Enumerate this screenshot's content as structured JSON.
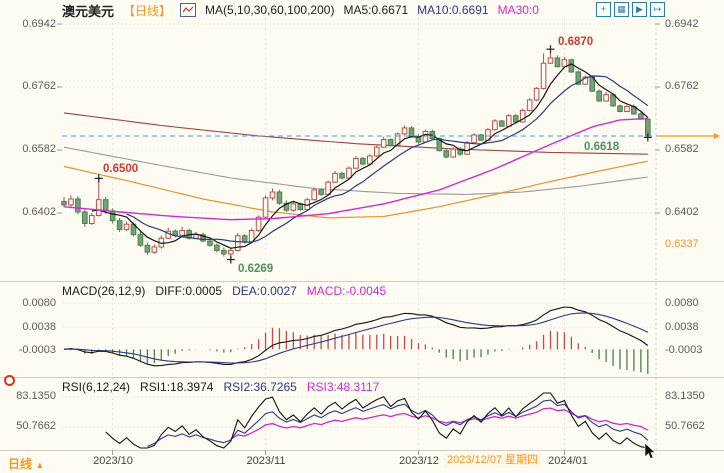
{
  "header": {
    "symbol": "澳元美元",
    "period_tag": "【日线】",
    "ma_title": "MA(5,10,30,60,100,200)",
    "ma5": "MA5:0.6671",
    "ma10": "MA10:0.6691",
    "ma30": "MA30:0",
    "icons": [
      {
        "name": "crosshair-move",
        "glyph": "+"
      },
      {
        "name": "axes-scale",
        "glyph": "▦"
      },
      {
        "name": "play-chart",
        "glyph": "▶"
      },
      {
        "name": "export-chart",
        "glyph": "↦"
      }
    ]
  },
  "main_axis": {
    "left": [
      "0.6942",
      "0.6762",
      "0.6582",
      "0.6402"
    ],
    "right": [
      "0.6942",
      "0.6762",
      "0.6582",
      "0.6402"
    ],
    "right_extra": "0.6337"
  },
  "annotations": {
    "period_high": "0.6870",
    "local_high": "0.6500",
    "period_low": "0.6269",
    "recent_low": "0.6618"
  },
  "macd": {
    "title": "MACD(26,12,9)",
    "diff": "DIFF:0.0005",
    "dea": "DEA:0.0027",
    "macd": "MACD:-0.0045",
    "ticks": [
      "0.0080",
      "0.0038",
      "-0.0003"
    ]
  },
  "rsi": {
    "title": "RSI(6,12,24)",
    "rsi1": "RSI1:18.3974",
    "rsi2": "RSI2:36.7265",
    "rsi3": "RSI3:48.3117",
    "ticks": [
      "83.1350",
      "50.7662"
    ]
  },
  "time_axis": {
    "period": "日线",
    "period_arrow": "▲",
    "months": [
      "2023/10",
      "2023/11",
      "2023/12",
      "2024/01"
    ],
    "crosshair_date": "2023/12/07 星期四"
  },
  "colors": {
    "up": "#b5504a",
    "upFill": "#fdfbf2",
    "down": "#4e7f4e",
    "downFill": "#74a276",
    "ma5": "#141414",
    "ma10": "#2a3a86",
    "ma30": "#cf2ecf",
    "ma60": "#dd9833",
    "ma100": "#9a9a9a",
    "ma200": "#9c4343",
    "lastPriceDash": "#3fa0d8",
    "orange": "#ef9a28",
    "histPos": "#bf4d4d",
    "histNeg": "#4d8050",
    "diff": "#141414",
    "dea": "#2a3a86",
    "rsi1": "#141414",
    "rsi2": "#2a3a86",
    "rsi3": "#c92cc9",
    "grid": "#e4e1d4",
    "separator": "#cfcec4",
    "marker": "#222222"
  },
  "chart_data": {
    "type": "candlestick",
    "title": "澳元美元 日线 (AUD/USD daily) with MA(5,10,30,60,100,200), MACD(26,12,9), RSI(6,12,24)",
    "y_ticks": [
      0.6942,
      0.6762,
      0.6582,
      0.6402
    ],
    "last_price": 0.6622,
    "month_start_indices": [
      7,
      29,
      51,
      72
    ],
    "marks": {
      "period_high": {
        "index": 70,
        "price": 0.687
      },
      "local_high": {
        "index": 5,
        "price": 0.6501
      },
      "period_low": {
        "index": 24,
        "price": 0.6269
      },
      "recent_low": {
        "index": 84,
        "price": 0.6618
      }
    },
    "candles": {
      "open": [
        0.6435,
        0.6425,
        0.6442,
        0.6405,
        0.6372,
        0.6395,
        0.644,
        0.6408,
        0.638,
        0.6355,
        0.637,
        0.634,
        0.631,
        0.629,
        0.6305,
        0.633,
        0.635,
        0.6338,
        0.6352,
        0.633,
        0.634,
        0.6322,
        0.631,
        0.6295,
        0.6285,
        0.6295,
        0.6337,
        0.632,
        0.6352,
        0.639,
        0.6445,
        0.6462,
        0.643,
        0.641,
        0.6428,
        0.6412,
        0.644,
        0.6468,
        0.6455,
        0.649,
        0.6515,
        0.6502,
        0.653,
        0.6558,
        0.6542,
        0.6565,
        0.659,
        0.6612,
        0.6595,
        0.6628,
        0.6645,
        0.662,
        0.6605,
        0.6635,
        0.6615,
        0.658,
        0.6562,
        0.6585,
        0.657,
        0.6603,
        0.6625,
        0.661,
        0.664,
        0.6665,
        0.665,
        0.668,
        0.6662,
        0.6695,
        0.6725,
        0.6758,
        0.683,
        0.6845,
        0.682,
        0.684,
        0.6805,
        0.677,
        0.679,
        0.675,
        0.6722,
        0.674,
        0.6708,
        0.6692,
        0.6706,
        0.6685,
        0.667
      ],
      "high": [
        0.6448,
        0.6452,
        0.645,
        0.6412,
        0.6402,
        0.6501,
        0.6448,
        0.6415,
        0.6388,
        0.6378,
        0.6375,
        0.6348,
        0.6318,
        0.6312,
        0.6338,
        0.636,
        0.6355,
        0.6362,
        0.6358,
        0.6348,
        0.6346,
        0.633,
        0.6315,
        0.6303,
        0.6302,
        0.6345,
        0.6342,
        0.6358,
        0.6395,
        0.6452,
        0.6472,
        0.6468,
        0.6438,
        0.6435,
        0.6432,
        0.6445,
        0.6475,
        0.6472,
        0.6495,
        0.6522,
        0.652,
        0.6535,
        0.6565,
        0.6562,
        0.657,
        0.6595,
        0.662,
        0.6615,
        0.6632,
        0.6652,
        0.665,
        0.6628,
        0.664,
        0.664,
        0.6618,
        0.6588,
        0.659,
        0.659,
        0.6608,
        0.663,
        0.6628,
        0.6645,
        0.667,
        0.6668,
        0.6685,
        0.6685,
        0.67,
        0.673,
        0.6762,
        0.6858,
        0.687,
        0.6852,
        0.6848,
        0.6842,
        0.681,
        0.6795,
        0.6792,
        0.6755,
        0.6748,
        0.6742,
        0.6712,
        0.671,
        0.6712,
        0.669,
        0.6675
      ],
      "low": [
        0.6418,
        0.642,
        0.6398,
        0.6362,
        0.6368,
        0.6392,
        0.64,
        0.6372,
        0.6348,
        0.635,
        0.6335,
        0.6305,
        0.6282,
        0.6285,
        0.63,
        0.6328,
        0.6332,
        0.6335,
        0.6326,
        0.6328,
        0.6318,
        0.6305,
        0.629,
        0.6278,
        0.6269,
        0.6292,
        0.6315,
        0.6318,
        0.6348,
        0.6388,
        0.6438,
        0.6425,
        0.6405,
        0.6405,
        0.6408,
        0.6408,
        0.6438,
        0.645,
        0.6452,
        0.6488,
        0.6498,
        0.6498,
        0.6528,
        0.6538,
        0.6538,
        0.6562,
        0.6588,
        0.6592,
        0.6592,
        0.6625,
        0.6618,
        0.66,
        0.6602,
        0.6612,
        0.6578,
        0.6558,
        0.656,
        0.6565,
        0.6568,
        0.66,
        0.6608,
        0.6608,
        0.6638,
        0.6648,
        0.6648,
        0.6658,
        0.666,
        0.6692,
        0.6722,
        0.6755,
        0.6828,
        0.6818,
        0.6818,
        0.6802,
        0.6768,
        0.6768,
        0.6748,
        0.672,
        0.672,
        0.6705,
        0.669,
        0.669,
        0.6683,
        0.6668,
        0.6618
      ],
      "close": [
        0.6425,
        0.6442,
        0.6405,
        0.6372,
        0.6395,
        0.644,
        0.6408,
        0.638,
        0.6355,
        0.637,
        0.634,
        0.631,
        0.629,
        0.6305,
        0.633,
        0.635,
        0.6338,
        0.6352,
        0.633,
        0.634,
        0.6322,
        0.631,
        0.6295,
        0.6285,
        0.6295,
        0.6337,
        0.632,
        0.6352,
        0.639,
        0.6445,
        0.6462,
        0.643,
        0.641,
        0.6428,
        0.6412,
        0.644,
        0.6468,
        0.6455,
        0.649,
        0.6515,
        0.6502,
        0.653,
        0.6558,
        0.6542,
        0.6565,
        0.659,
        0.6612,
        0.6595,
        0.6628,
        0.6645,
        0.662,
        0.6605,
        0.6635,
        0.6615,
        0.658,
        0.6562,
        0.6585,
        0.657,
        0.6603,
        0.6625,
        0.661,
        0.664,
        0.6665,
        0.665,
        0.668,
        0.6662,
        0.6695,
        0.6725,
        0.6758,
        0.683,
        0.6845,
        0.682,
        0.684,
        0.6805,
        0.677,
        0.679,
        0.675,
        0.6722,
        0.674,
        0.6708,
        0.6692,
        0.6706,
        0.6685,
        0.667,
        0.6622
      ]
    },
    "ma_control_points": {
      "ma30": [
        [
          0,
          0.642
        ],
        [
          8,
          0.6405
        ],
        [
          16,
          0.6392
        ],
        [
          24,
          0.6383
        ],
        [
          30,
          0.6386
        ],
        [
          38,
          0.64
        ],
        [
          46,
          0.6428
        ],
        [
          54,
          0.6468
        ],
        [
          62,
          0.6528
        ],
        [
          70,
          0.6598
        ],
        [
          76,
          0.6648
        ],
        [
          80,
          0.6668
        ],
        [
          84,
          0.6672
        ]
      ],
      "ma60": [
        [
          0,
          0.6535
        ],
        [
          10,
          0.649
        ],
        [
          20,
          0.6442
        ],
        [
          30,
          0.6405
        ],
        [
          38,
          0.6388
        ],
        [
          46,
          0.6392
        ],
        [
          54,
          0.642
        ],
        [
          62,
          0.6455
        ],
        [
          70,
          0.6492
        ],
        [
          77,
          0.6522
        ],
        [
          84,
          0.655
        ]
      ],
      "ma100": [
        [
          0,
          0.659
        ],
        [
          12,
          0.6545
        ],
        [
          24,
          0.6502
        ],
        [
          36,
          0.6472
        ],
        [
          48,
          0.6458
        ],
        [
          58,
          0.6455
        ],
        [
          66,
          0.6462
        ],
        [
          74,
          0.6478
        ],
        [
          84,
          0.6505
        ]
      ],
      "ma200": [
        [
          0,
          0.6688
        ],
        [
          14,
          0.6652
        ],
        [
          28,
          0.6622
        ],
        [
          42,
          0.66
        ],
        [
          56,
          0.6585
        ],
        [
          70,
          0.6575
        ],
        [
          84,
          0.657
        ]
      ]
    },
    "macd_ticks": [
      0.008,
      0.0038,
      -0.0003
    ],
    "rsi_ticks": [
      83.135,
      50.7662
    ],
    "indicators": {
      "macd": {
        "params": [
          26,
          12,
          9
        ],
        "diff": 0.0005,
        "dea": 0.0027,
        "hist": -0.0045
      },
      "rsi": {
        "params": [
          6,
          12,
          24
        ],
        "values": [
          18.3974,
          36.7265,
          48.3117
        ]
      }
    }
  }
}
